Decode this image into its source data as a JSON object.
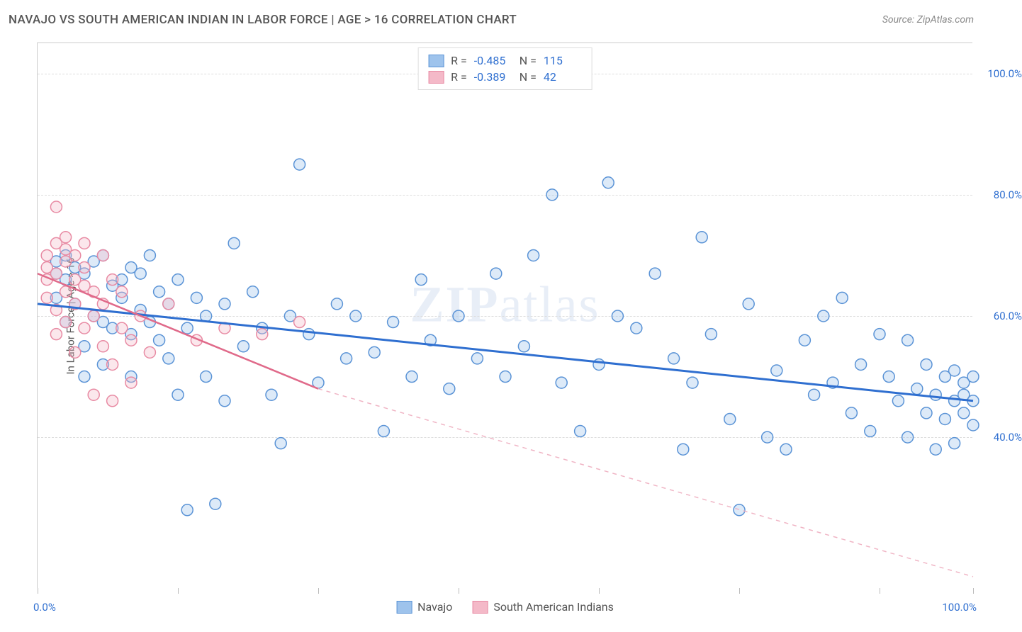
{
  "header": {
    "title": "NAVAJO VS SOUTH AMERICAN INDIAN IN LABOR FORCE | AGE > 16 CORRELATION CHART",
    "source": "Source: ZipAtlas.com"
  },
  "watermark": {
    "zip": "ZIP",
    "atlas": "atlas"
  },
  "chart": {
    "type": "scatter",
    "background_color": "#ffffff",
    "grid_color": "#dddddd",
    "border_color": "#cccccc",
    "text_color": "#555555",
    "xlim": [
      0,
      100
    ],
    "ylim": [
      15,
      105
    ],
    "y_ticks": [
      40,
      60,
      80,
      100
    ],
    "y_tick_labels": [
      "40.0%",
      "60.0%",
      "80.0%",
      "100.0%"
    ],
    "y_tick_color": "#2f6fd0",
    "x_ticks": [
      0,
      15,
      30,
      45,
      60,
      75,
      90,
      100
    ],
    "x_axis_labels": {
      "left": "0.0%",
      "right": "100.0%",
      "color": "#2f6fd0"
    },
    "y_axis_title": "In Labor Force | Age > 16",
    "marker_radius": 8,
    "marker_stroke_width": 1.5,
    "marker_fill_opacity": 0.35,
    "series": [
      {
        "name": "Navajo",
        "color": "#9ec3ec",
        "stroke": "#5a93d6",
        "trend": {
          "x1": 0,
          "y1": 62,
          "x2": 100,
          "y2": 46,
          "color": "#2f6fd0",
          "width": 3
        },
        "R": "-0.485",
        "N": "115",
        "points": [
          [
            2,
            67
          ],
          [
            2,
            69
          ],
          [
            2,
            63
          ],
          [
            3,
            66
          ],
          [
            3,
            59
          ],
          [
            3,
            70
          ],
          [
            4,
            68
          ],
          [
            4,
            62
          ],
          [
            5,
            55
          ],
          [
            5,
            67
          ],
          [
            5,
            50
          ],
          [
            6,
            60
          ],
          [
            6,
            69
          ],
          [
            7,
            59
          ],
          [
            7,
            52
          ],
          [
            7,
            70
          ],
          [
            8,
            65
          ],
          [
            8,
            58
          ],
          [
            9,
            66
          ],
          [
            9,
            63
          ],
          [
            10,
            68
          ],
          [
            10,
            57
          ],
          [
            10,
            50
          ],
          [
            11,
            61
          ],
          [
            11,
            67
          ],
          [
            12,
            59
          ],
          [
            12,
            70
          ],
          [
            13,
            64
          ],
          [
            13,
            56
          ],
          [
            14,
            62
          ],
          [
            14,
            53
          ],
          [
            15,
            66
          ],
          [
            15,
            47
          ],
          [
            16,
            28
          ],
          [
            16,
            58
          ],
          [
            17,
            63
          ],
          [
            18,
            60
          ],
          [
            18,
            50
          ],
          [
            19,
            29
          ],
          [
            20,
            46
          ],
          [
            20,
            62
          ],
          [
            21,
            72
          ],
          [
            22,
            55
          ],
          [
            23,
            64
          ],
          [
            24,
            58
          ],
          [
            25,
            47
          ],
          [
            26,
            39
          ],
          [
            27,
            60
          ],
          [
            28,
            85
          ],
          [
            29,
            57
          ],
          [
            30,
            49
          ],
          [
            32,
            62
          ],
          [
            33,
            53
          ],
          [
            34,
            60
          ],
          [
            36,
            54
          ],
          [
            37,
            41
          ],
          [
            38,
            59
          ],
          [
            40,
            50
          ],
          [
            41,
            66
          ],
          [
            42,
            56
          ],
          [
            44,
            48
          ],
          [
            45,
            60
          ],
          [
            47,
            53
          ],
          [
            49,
            67
          ],
          [
            50,
            50
          ],
          [
            52,
            55
          ],
          [
            53,
            70
          ],
          [
            55,
            80
          ],
          [
            56,
            49
          ],
          [
            58,
            41
          ],
          [
            60,
            52
          ],
          [
            61,
            82
          ],
          [
            62,
            60
          ],
          [
            64,
            58
          ],
          [
            66,
            67
          ],
          [
            68,
            53
          ],
          [
            69,
            38
          ],
          [
            70,
            49
          ],
          [
            71,
            73
          ],
          [
            72,
            57
          ],
          [
            74,
            43
          ],
          [
            75,
            28
          ],
          [
            76,
            62
          ],
          [
            78,
            40
          ],
          [
            79,
            51
          ],
          [
            80,
            38
          ],
          [
            82,
            56
          ],
          [
            83,
            47
          ],
          [
            84,
            60
          ],
          [
            85,
            49
          ],
          [
            86,
            63
          ],
          [
            87,
            44
          ],
          [
            88,
            52
          ],
          [
            89,
            41
          ],
          [
            90,
            57
          ],
          [
            91,
            50
          ],
          [
            92,
            46
          ],
          [
            93,
            56
          ],
          [
            93,
            40
          ],
          [
            94,
            48
          ],
          [
            95,
            52
          ],
          [
            95,
            44
          ],
          [
            96,
            47
          ],
          [
            96,
            38
          ],
          [
            97,
            50
          ],
          [
            97,
            43
          ],
          [
            98,
            46
          ],
          [
            98,
            51
          ],
          [
            98,
            39
          ],
          [
            99,
            47
          ],
          [
            99,
            44
          ],
          [
            99,
            49
          ],
          [
            100,
            46
          ],
          [
            100,
            42
          ],
          [
            100,
            50
          ]
        ]
      },
      {
        "name": "South American Indians",
        "color": "#f4b9c8",
        "stroke": "#e88aa3",
        "trend_solid": {
          "x1": 0,
          "y1": 67,
          "x2": 30,
          "y2": 48,
          "color": "#e06a8a",
          "width": 2.5
        },
        "trend_dashed": {
          "x1": 30,
          "y1": 48,
          "x2": 100,
          "y2": 17,
          "color": "#f0b5c5",
          "width": 1.5,
          "dash": "6 6"
        },
        "R": "-0.389",
        "N": "42",
        "points": [
          [
            1,
            68
          ],
          [
            1,
            66
          ],
          [
            1,
            70
          ],
          [
            1,
            63
          ],
          [
            2,
            72
          ],
          [
            2,
            67
          ],
          [
            2,
            61
          ],
          [
            2,
            78
          ],
          [
            2,
            57
          ],
          [
            3,
            69
          ],
          [
            3,
            64
          ],
          [
            3,
            71
          ],
          [
            3,
            73
          ],
          [
            3,
            59
          ],
          [
            4,
            66
          ],
          [
            4,
            62
          ],
          [
            4,
            70
          ],
          [
            4,
            54
          ],
          [
            5,
            68
          ],
          [
            5,
            58
          ],
          [
            5,
            65
          ],
          [
            5,
            72
          ],
          [
            6,
            60
          ],
          [
            6,
            47
          ],
          [
            6,
            64
          ],
          [
            7,
            55
          ],
          [
            7,
            62
          ],
          [
            7,
            70
          ],
          [
            8,
            52
          ],
          [
            8,
            66
          ],
          [
            8,
            46
          ],
          [
            9,
            58
          ],
          [
            9,
            64
          ],
          [
            10,
            56
          ],
          [
            10,
            49
          ],
          [
            11,
            60
          ],
          [
            12,
            54
          ],
          [
            14,
            62
          ],
          [
            17,
            56
          ],
          [
            20,
            58
          ],
          [
            24,
            57
          ],
          [
            28,
            59
          ]
        ]
      }
    ]
  },
  "legend_top": {
    "r_label": "R =",
    "n_label": "N =",
    "value_color": "#2f6fd0"
  },
  "legend_bottom": {
    "items": [
      "Navajo",
      "South American Indians"
    ]
  }
}
